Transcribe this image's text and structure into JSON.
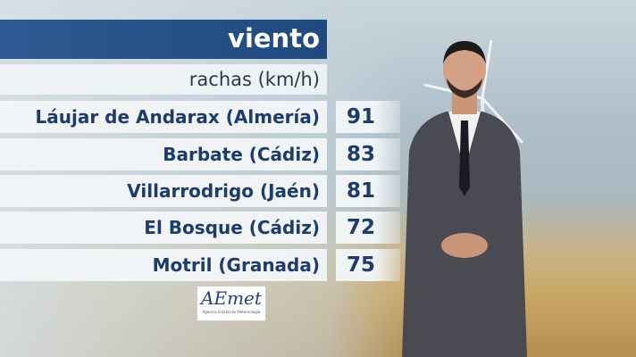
{
  "title": "viento",
  "subtitle": "rachas (km/h)",
  "rows": [
    {
      "place": "Láujar de Andarax (Almería)",
      "value": "91"
    },
    {
      "place": "Barbate (Cádiz)",
      "value": "83"
    },
    {
      "place": "Villarrodrigo (Jaén)",
      "value": "81"
    },
    {
      "place": "El Bosque (Cádiz)",
      "value": "72"
    },
    {
      "place": "Motril (Granada)",
      "value": "75"
    }
  ],
  "logo": {
    "text": "AEmet",
    "subtext": "Agencia Estatal de Meteorología"
  },
  "colors": {
    "title_bg": "#2d5a92",
    "text": "#1d3c6c"
  }
}
